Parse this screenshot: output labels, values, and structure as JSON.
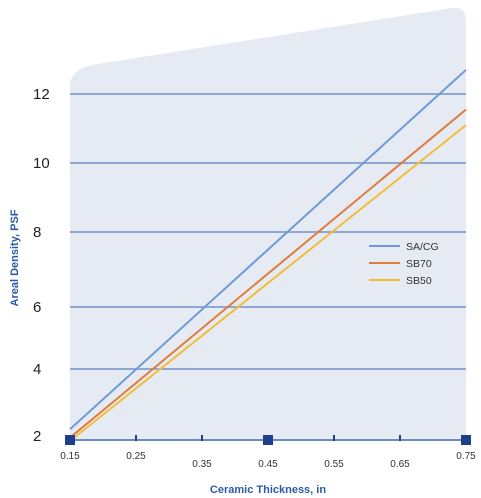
{
  "chart_data": {
    "type": "line",
    "xlabel": "Ceramic Thickness, in",
    "ylabel": "Areal Density, PSF",
    "x_ticks": [
      "0.15",
      "0.25",
      "0.35",
      "0.45",
      "0.55",
      "0.65",
      "0.75"
    ],
    "y_ticks": [
      "2",
      "4",
      "6",
      "8",
      "10",
      "12"
    ],
    "xlim": [
      0.15,
      0.75
    ],
    "ylim": [
      2,
      12
    ],
    "grid": "horizontal",
    "legend_position": "right",
    "series": [
      {
        "name": "SA/CG",
        "color": "#6e9bd8",
        "x": [
          0.15,
          0.75
        ],
        "y": [
          2.2,
          12.7
        ]
      },
      {
        "name": "SB70",
        "color": "#e07b3c",
        "x": [
          0.15,
          0.75
        ],
        "y": [
          1.95,
          11.55
        ]
      },
      {
        "name": "SB50",
        "color": "#f2be3a",
        "x": [
          0.15,
          0.75
        ],
        "y": [
          1.85,
          11.1
        ]
      }
    ]
  },
  "colors": {
    "panel": "#e6ebf3",
    "gridline": "#8ea8d2",
    "axis": "#6a8bc6",
    "marker": "#1f3f8c",
    "title": "#2b5aa8"
  }
}
